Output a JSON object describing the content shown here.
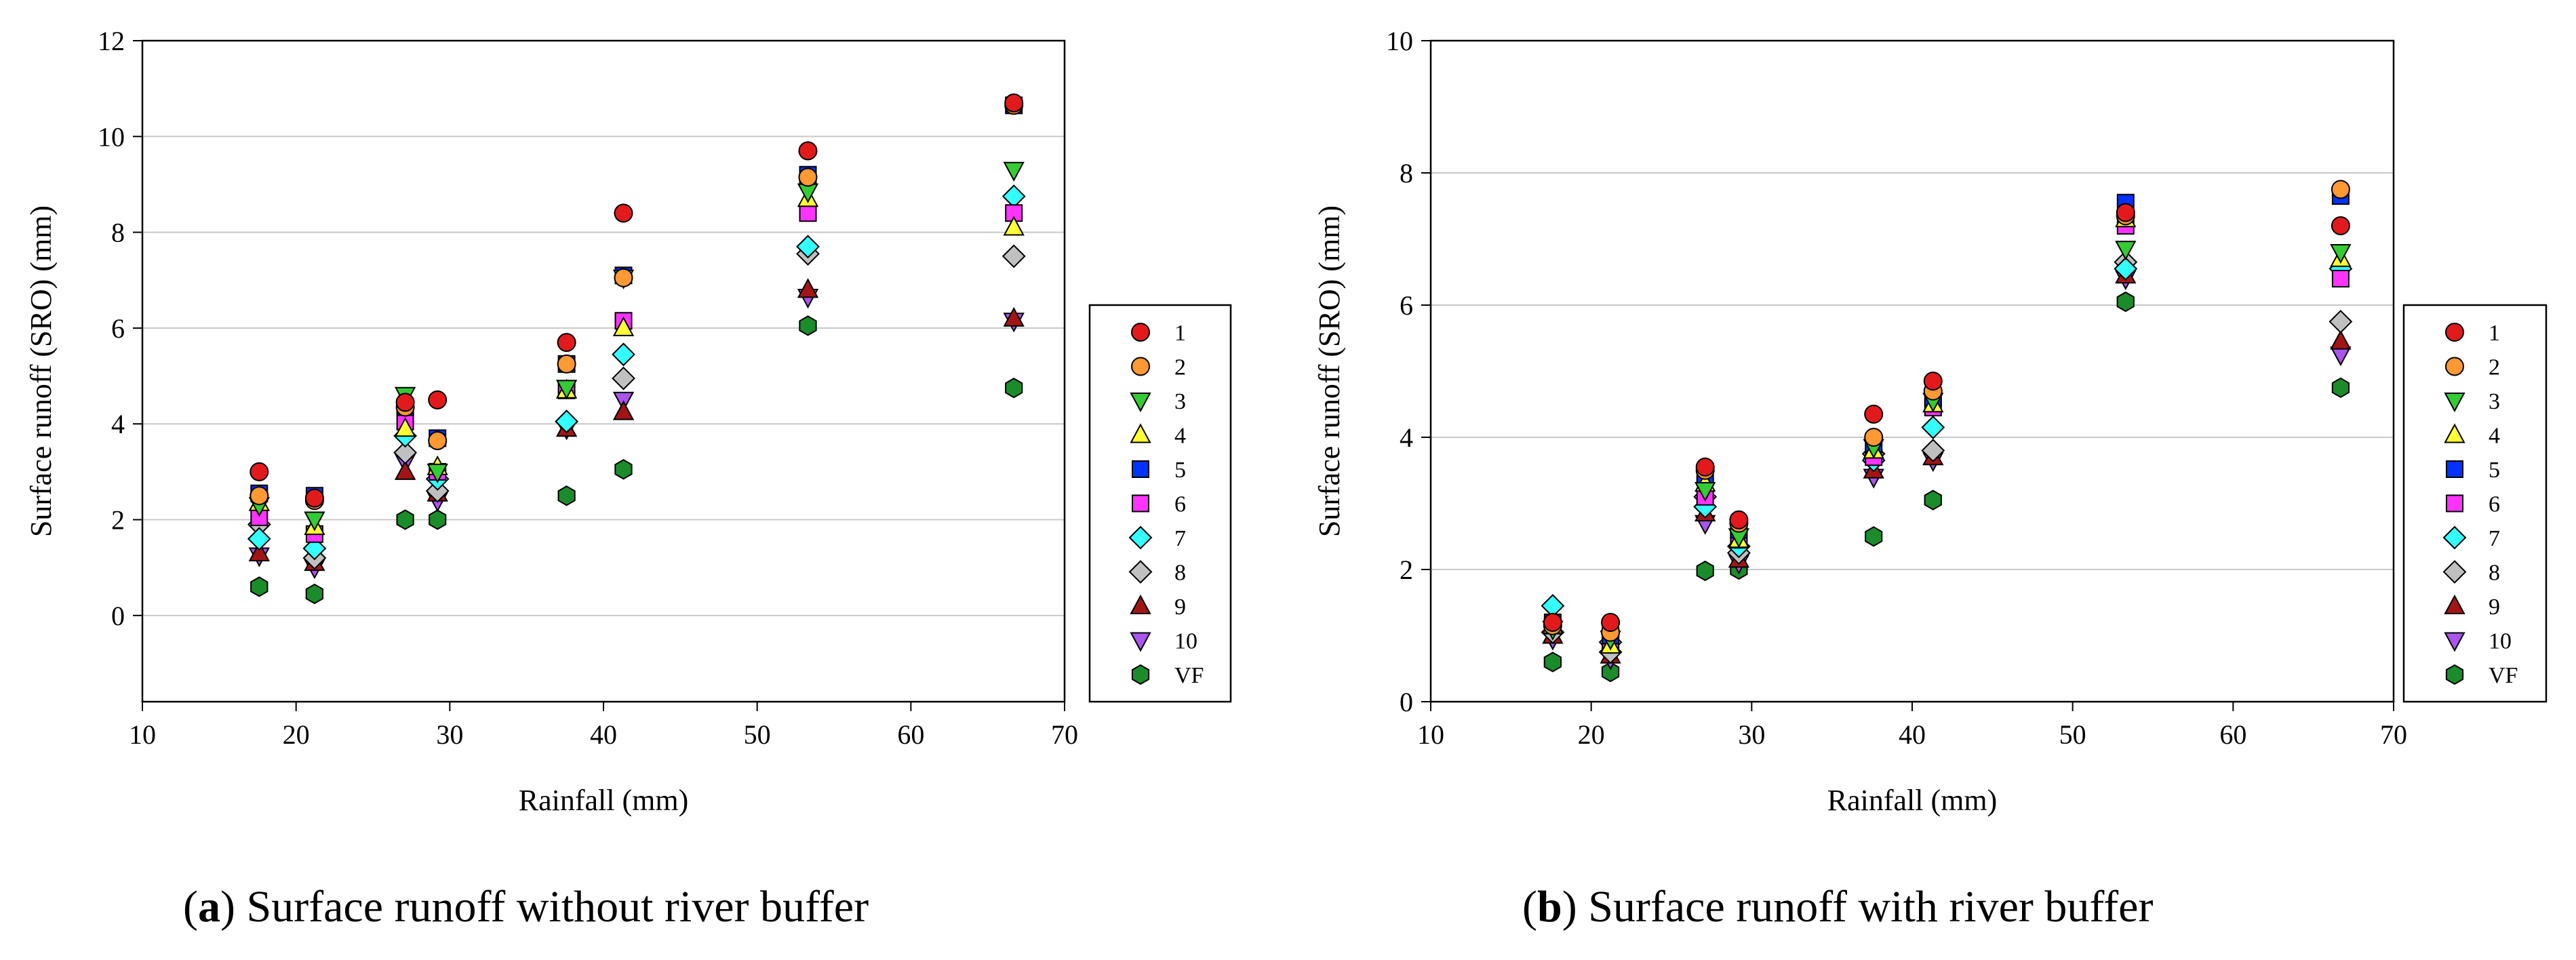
{
  "colors": {
    "s1": "#e31a1c",
    "s2": "#ff9933",
    "s3": "#33cc33",
    "s4": "#ffff33",
    "s5": "#0033ff",
    "s6": "#ff33ff",
    "s7": "#33ffff",
    "s8": "#c0c0c0",
    "sVF": "#1a8c2a",
    "s9": "#a31515",
    "s10": "#aa55ee"
  },
  "chart_data": [
    {
      "id": "a",
      "type": "scatter",
      "caption_label": "a",
      "caption_text": "Surface runoff without river buffer",
      "xlabel": "Rainfall (mm)",
      "ylabel": "Surface runoff (SRO) (mm)",
      "xlim": [
        10,
        70
      ],
      "ylim": [
        -1.8,
        12
      ],
      "x_ticks": [
        "10",
        "20",
        "30",
        "40",
        "50",
        "60",
        "70"
      ],
      "y_ticks": [
        "0",
        "2",
        "4",
        "6",
        "8",
        "10",
        "12"
      ],
      "grid": "horizontal",
      "legend": "right",
      "x": [
        17.6,
        21.2,
        27.1,
        29.2,
        37.6,
        41.3,
        53.3,
        66.7
      ],
      "series": [
        {
          "name": "1",
          "marker": "circle",
          "color": "s1",
          "values": [
            3.0,
            2.45,
            4.45,
            4.5,
            5.7,
            8.4,
            9.7,
            10.7
          ]
        },
        {
          "name": "2",
          "marker": "circle",
          "color": "s2",
          "values": [
            2.5,
            2.4,
            4.35,
            3.65,
            5.25,
            7.05,
            9.15,
            10.65
          ]
        },
        {
          "name": "3",
          "marker": "triangle-down",
          "color": "s3",
          "values": [
            2.3,
            2.0,
            4.6,
            3.0,
            4.75,
            7.05,
            8.85,
            9.3
          ]
        },
        {
          "name": "4",
          "marker": "triangle-up",
          "color": "s4",
          "values": [
            2.35,
            1.85,
            3.9,
            3.1,
            4.7,
            6.0,
            8.7,
            8.1
          ]
        },
        {
          "name": "5",
          "marker": "square",
          "color": "s5",
          "values": [
            2.55,
            2.5,
            4.35,
            3.7,
            5.25,
            7.1,
            9.2,
            10.65
          ]
        },
        {
          "name": "6",
          "marker": "square",
          "color": "s6",
          "values": [
            2.05,
            1.7,
            4.05,
            3.0,
            4.7,
            6.15,
            8.4,
            8.4
          ]
        },
        {
          "name": "7",
          "marker": "diamond",
          "color": "s7",
          "values": [
            1.6,
            1.4,
            3.75,
            2.85,
            4.05,
            5.45,
            7.7,
            8.75
          ]
        },
        {
          "name": "8",
          "marker": "diamond",
          "color": "s8",
          "values": [
            1.9,
            1.2,
            3.4,
            2.6,
            4.05,
            4.95,
            7.55,
            7.5
          ]
        },
        {
          "name": "9",
          "marker": "triangle-up",
          "color": "s9",
          "values": [
            1.3,
            1.1,
            3.0,
            2.55,
            3.9,
            4.25,
            6.8,
            6.2
          ]
        },
        {
          "name": "10",
          "marker": "triangle-down",
          "color": "s10",
          "values": [
            1.25,
            1.0,
            3.2,
            2.4,
            3.9,
            4.5,
            6.65,
            6.15
          ]
        },
        {
          "name": "VF",
          "marker": "hexagon",
          "color": "sVF",
          "values": [
            0.6,
            0.45,
            2.0,
            2.0,
            2.5,
            3.05,
            6.05,
            4.75
          ]
        }
      ]
    },
    {
      "id": "b",
      "type": "scatter",
      "caption_label": "b",
      "caption_text": "Surface runoff with river buffer",
      "xlabel": "Rainfall (mm)",
      "ylabel": "Surface runoff (SRO) (mm)",
      "xlim": [
        10,
        70
      ],
      "ylim": [
        0,
        10
      ],
      "x_ticks": [
        "10",
        "20",
        "30",
        "40",
        "50",
        "60",
        "70"
      ],
      "y_ticks": [
        "0",
        "2",
        "4",
        "6",
        "8",
        "10"
      ],
      "grid": "horizontal",
      "legend": "right",
      "x": [
        17.6,
        21.2,
        27.1,
        29.2,
        37.6,
        41.3,
        53.3,
        66.7
      ],
      "series": [
        {
          "name": "1",
          "marker": "circle",
          "color": "s1",
          "values": [
            1.2,
            1.2,
            3.55,
            2.75,
            4.35,
            4.85,
            7.4,
            7.2
          ]
        },
        {
          "name": "2",
          "marker": "circle",
          "color": "s2",
          "values": [
            1.15,
            1.05,
            3.5,
            2.7,
            4.0,
            4.7,
            7.35,
            7.75
          ]
        },
        {
          "name": "3",
          "marker": "triangle-down",
          "color": "s3",
          "values": [
            1.1,
            0.95,
            3.2,
            2.5,
            3.85,
            4.55,
            6.85,
            6.8
          ]
        },
        {
          "name": "4",
          "marker": "triangle-up",
          "color": "s4",
          "values": [
            1.15,
            0.85,
            3.3,
            2.45,
            3.8,
            4.5,
            7.3,
            6.7
          ]
        },
        {
          "name": "5",
          "marker": "square",
          "color": "s5",
          "values": [
            1.2,
            1.0,
            3.4,
            2.6,
            3.9,
            4.6,
            7.55,
            7.65
          ]
        },
        {
          "name": "6",
          "marker": "square",
          "color": "s6",
          "values": [
            1.15,
            0.9,
            3.1,
            2.45,
            3.7,
            4.45,
            7.2,
            6.4
          ]
        },
        {
          "name": "7",
          "marker": "diamond",
          "color": "s7",
          "values": [
            1.45,
            0.9,
            2.95,
            2.35,
            3.65,
            4.15,
            6.55,
            6.55
          ]
        },
        {
          "name": "8",
          "marker": "diamond",
          "color": "s8",
          "values": [
            1.05,
            0.75,
            3.1,
            2.25,
            3.75,
            3.8,
            6.65,
            5.75
          ]
        },
        {
          "name": "9",
          "marker": "triangle-up",
          "color": "s9",
          "values": [
            1.0,
            0.7,
            2.85,
            2.15,
            3.5,
            3.7,
            6.45,
            5.45
          ]
        },
        {
          "name": "10",
          "marker": "triangle-down",
          "color": "s10",
          "values": [
            0.95,
            0.65,
            2.7,
            2.1,
            3.4,
            3.65,
            6.4,
            5.25
          ]
        },
        {
          "name": "VF",
          "marker": "hexagon",
          "color": "sVF",
          "values": [
            0.6,
            0.45,
            1.98,
            2.0,
            2.5,
            3.05,
            6.05,
            4.75
          ]
        }
      ]
    }
  ]
}
